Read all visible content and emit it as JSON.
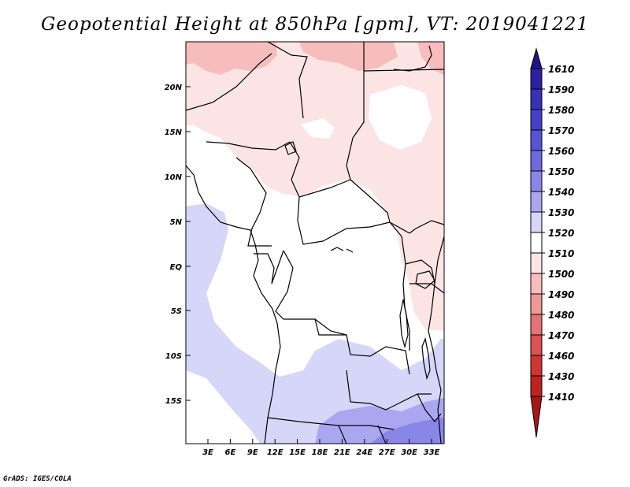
{
  "title": "Geopotential Height at 850hPa [gpm], VT: 2019041221",
  "footer": "GrADS: IGES/COLA",
  "map": {
    "lat_labels": [
      "20N",
      "15N",
      "10N",
      "5N",
      "EQ",
      "5S",
      "10S",
      "15S"
    ],
    "lon_labels": [
      "3E",
      "6E",
      "9E",
      "12E",
      "15E",
      "18E",
      "21E",
      "24E",
      "27E",
      "30E",
      "33E"
    ]
  },
  "colorbar": {
    "levels": [
      "1610",
      "1590",
      "1580",
      "1570",
      "1560",
      "1550",
      "1540",
      "1530",
      "1520",
      "1510",
      "1500",
      "1490",
      "1480",
      "1470",
      "1460",
      "1430",
      "1410"
    ],
    "colors": {
      "top_triangle": "#1f1489",
      "blue_1590": "#2a21a3",
      "blue_1580": "#3631b8",
      "blue_1570": "#4540c9",
      "blue_1560": "#5853d6",
      "blue_1550": "#6e6ae0",
      "blue_1540": "#8a86e8",
      "blue_1530": "#aaa7f0",
      "blue_1520": "#d6d6f8",
      "white_1510": "#ffffff",
      "pink_1500": "#fce4e4",
      "pink_1490": "#f7bcbc",
      "red_1480": "#ee9898",
      "red_1470": "#e47373",
      "red_1460": "#dc5151",
      "red_1430": "#d03535",
      "red_1410": "#bf2222",
      "bottom_triangle": "#a81616"
    }
  }
}
